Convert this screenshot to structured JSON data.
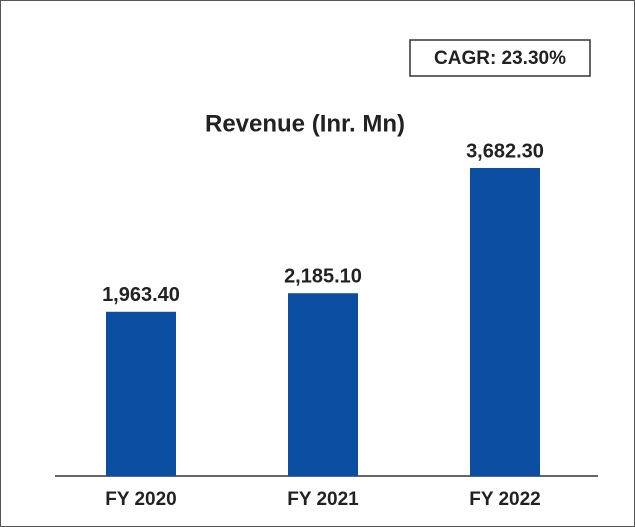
{
  "chart_data": {
    "type": "bar",
    "title": "Revenue (Inr. Mn)",
    "annotation": "CAGR: 23.30%",
    "categories": [
      "FY 2020",
      "FY 2021",
      "FY 2022"
    ],
    "values": [
      1963.4,
      2185.1,
      3682.3
    ],
    "value_labels": [
      "1,963.40",
      "2,185.10",
      "3,682.30"
    ],
    "color": "#0b4ea2"
  }
}
